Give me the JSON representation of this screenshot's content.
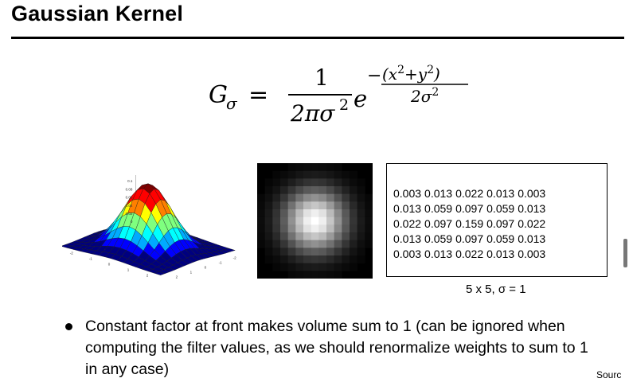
{
  "slide": {
    "title": "Gaussian Kernel",
    "bullet": "Constant factor at front makes volume sum to 1 (can be ignored when computing the filter values, as we should renormalize weights to sum to 1 in any case)",
    "source": "Sourc"
  },
  "formula": {
    "lhs_symbol": "G",
    "lhs_subscript": "σ",
    "equals": "=",
    "numerator": "1",
    "denominator_base": "2πσ",
    "denominator_exp": "2",
    "e": "e",
    "minus": "−",
    "exp_numerator": "(x",
    "exp_num_sq1": "2",
    "exp_num_mid": "+y",
    "exp_num_sq2": "2",
    "exp_num_close": ")",
    "exp_denominator": "2σ",
    "exp_den_sq": "2"
  },
  "surface_plot": {
    "z_ticks": [
      "0.16",
      "0.14",
      "0.12",
      "0.1",
      "0.08",
      "0.06",
      "0.04",
      "0.02",
      "0"
    ],
    "axis_ticks_right": [
      "2",
      "1",
      "0",
      "-1",
      "-2"
    ],
    "axis_ticks_left": [
      "2",
      "1",
      "0",
      "-1",
      "-2"
    ],
    "colormap": [
      "#00007f",
      "#0000ff",
      "#00aaff",
      "#00ffff",
      "#7fff7f",
      "#ffff00",
      "#ff7f00",
      "#ff0000",
      "#7f0000"
    ]
  },
  "kernel_matrix": {
    "rows": [
      [
        "0.003",
        "0.013",
        "0.022",
        "0.013",
        "0.003"
      ],
      [
        "0.013",
        "0.059",
        "0.097",
        "0.059",
        "0.013"
      ],
      [
        "0.022",
        "0.097",
        "0.159",
        "0.097",
        "0.022"
      ],
      [
        "0.013",
        "0.059",
        "0.097",
        "0.059",
        "0.013"
      ],
      [
        "0.003",
        "0.013",
        "0.022",
        "0.013",
        "0.003"
      ]
    ],
    "caption": "5 x 5, σ = 1"
  }
}
